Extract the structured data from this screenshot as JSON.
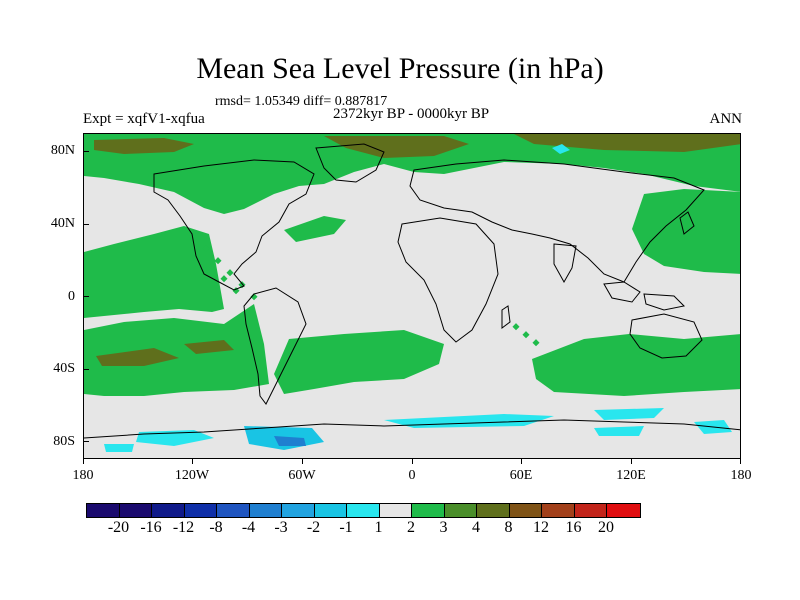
{
  "title": "Mean Sea Level Pressure (in hPa)",
  "stats": "rmsd= 1.05349 diff= 0.887817",
  "period": "2372kyr BP - 0000kyr BP",
  "expt": "Expt = xqfV1-xqfua",
  "season": "ANN",
  "y_labels": [
    "80N",
    "40N",
    "0",
    "40S",
    "80S"
  ],
  "x_labels": [
    "180",
    "120W",
    "60W",
    "0",
    "60E",
    "120E",
    "180"
  ],
  "colorbar": {
    "labels": [
      "-20",
      "-16",
      "-12",
      "-8",
      "-4",
      "-3",
      "-2",
      "-1",
      "1",
      "2",
      "3",
      "4",
      "8",
      "12",
      "16",
      "20"
    ],
    "colors": [
      "#1a0a6e",
      "#101a8a",
      "#0f2fa8",
      "#1f55c0",
      "#1f7fd0",
      "#21a3e0",
      "#19c4e4",
      "#29e6ee",
      "#e6e6e6",
      "#1fbb4a",
      "#4a8e2a",
      "#5f6f1c",
      "#7f5316",
      "#a2401a",
      "#c2241a",
      "#e00d10"
    ]
  },
  "chart_data": {
    "type": "heatmap",
    "title": "Mean Sea Level Pressure (in hPa)",
    "subtitle": "2372kyr BP - 0000kyr BP",
    "variable": "Mean Sea Level Pressure difference",
    "units": "hPa",
    "x_range": [
      -180,
      180
    ],
    "y_range": [
      -90,
      90
    ],
    "x_ticks": [
      "180",
      "120W",
      "60W",
      "0",
      "60E",
      "120E",
      "180"
    ],
    "y_ticks": [
      "80N",
      "40N",
      "0",
      "40S",
      "80S"
    ],
    "levels": [
      -20,
      -16,
      -12,
      -8,
      -4,
      -3,
      -2,
      -1,
      1,
      2,
      3,
      4,
      8,
      12,
      16,
      20
    ],
    "rmsd": 1.05349,
    "diff": 0.887817
  }
}
